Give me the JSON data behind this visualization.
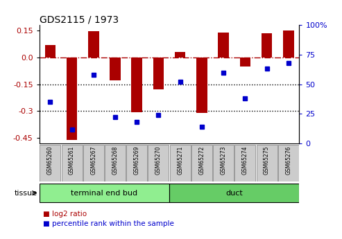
{
  "title": "GDS2115 / 1973",
  "samples": [
    "GSM65260",
    "GSM65261",
    "GSM65267",
    "GSM65268",
    "GSM65269",
    "GSM65270",
    "GSM65271",
    "GSM65272",
    "GSM65273",
    "GSM65274",
    "GSM65275",
    "GSM65276"
  ],
  "log2_ratio": [
    0.07,
    -0.46,
    0.145,
    -0.13,
    -0.305,
    -0.18,
    0.03,
    -0.31,
    0.14,
    -0.05,
    0.135,
    0.15
  ],
  "percentile_rank": [
    35,
    12,
    58,
    22,
    18,
    24,
    52,
    14,
    60,
    38,
    63,
    68
  ],
  "groups": [
    {
      "label": "terminal end bud",
      "start": 0,
      "end": 6,
      "color": "#90EE90"
    },
    {
      "label": "duct",
      "start": 6,
      "end": 12,
      "color": "#66CC66"
    }
  ],
  "bar_color": "#AA0000",
  "dot_color": "#0000CC",
  "ylim_left": [
    -0.48,
    0.18
  ],
  "ylim_right": [
    0,
    100
  ],
  "yticks_left": [
    -0.45,
    -0.3,
    -0.15,
    0.0,
    0.15
  ],
  "yticks_right": [
    0,
    25,
    50,
    75,
    100
  ],
  "hline_y": 0.0,
  "dotted_lines": [
    -0.15,
    -0.3
  ],
  "background_color": "#ffffff",
  "plot_bg": "#ffffff",
  "tissue_label": "tissue",
  "legend_log2": "log2 ratio",
  "legend_pct": "percentile rank within the sample",
  "sample_box_color": "#cccccc",
  "sample_box_edge": "#999999"
}
